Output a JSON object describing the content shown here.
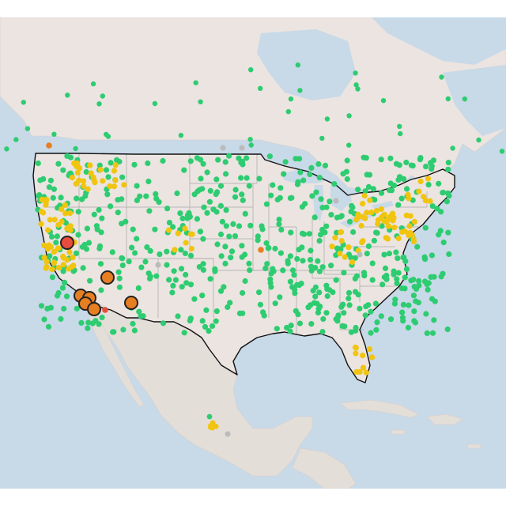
{
  "map": {
    "region": "United States",
    "colors": {
      "water": "#c8d9e8",
      "land": "#ebe4e0",
      "land_alt": "#e4ded9",
      "good": "#2ecc71",
      "moderate": "#f1c40f",
      "sensitive": "#e67e22",
      "unhealthy": "#e74c3c",
      "unavailable": "#bbbbbb",
      "border": "#111111"
    },
    "legend": []
  }
}
